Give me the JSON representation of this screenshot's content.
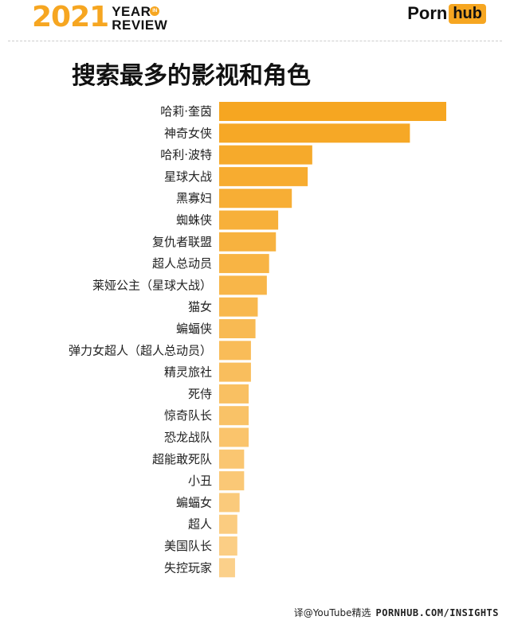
{
  "header": {
    "year": "2021",
    "year_line1": "YEAR",
    "year_in": "IN",
    "year_line2": "REVIEW",
    "brand_part1": "Porn",
    "brand_part2": "hub"
  },
  "footer": {
    "credit": "译@YouTube精选",
    "site": "PORNHUB.COM/INSIGHTS"
  },
  "chart_data": {
    "type": "bar",
    "orientation": "horizontal",
    "title": "搜索最多的影视和角色",
    "categories": [
      "哈莉·奎茵",
      "神奇女侠",
      "哈利·波特",
      "星球大战",
      "黑寡妇",
      "蜘蛛侠",
      "复仇者联盟",
      "超人总动员",
      "莱娅公主（星球大战）",
      "猫女",
      "蝙蝠侠",
      "弹力女超人（超人总动员）",
      "精灵旅社",
      "死侍",
      "惊奇队长",
      "恐龙战队",
      "超能敢死队",
      "小丑",
      "蝙蝠女",
      "超人",
      "美国队长",
      "失控玩家"
    ],
    "values": [
      100,
      84,
      41,
      39,
      32,
      26,
      25,
      22,
      21,
      17,
      16,
      14,
      14,
      13,
      13,
      13,
      11,
      11,
      9,
      8,
      8,
      7
    ],
    "value_note": "relative bar length, longest bar = 100",
    "xlim": [
      0,
      100
    ],
    "grid": false,
    "legend": "none",
    "colors": {
      "bar_top": "#f6a621",
      "bar_bottom": "#fbd08a",
      "accent": "#f6a621"
    }
  }
}
